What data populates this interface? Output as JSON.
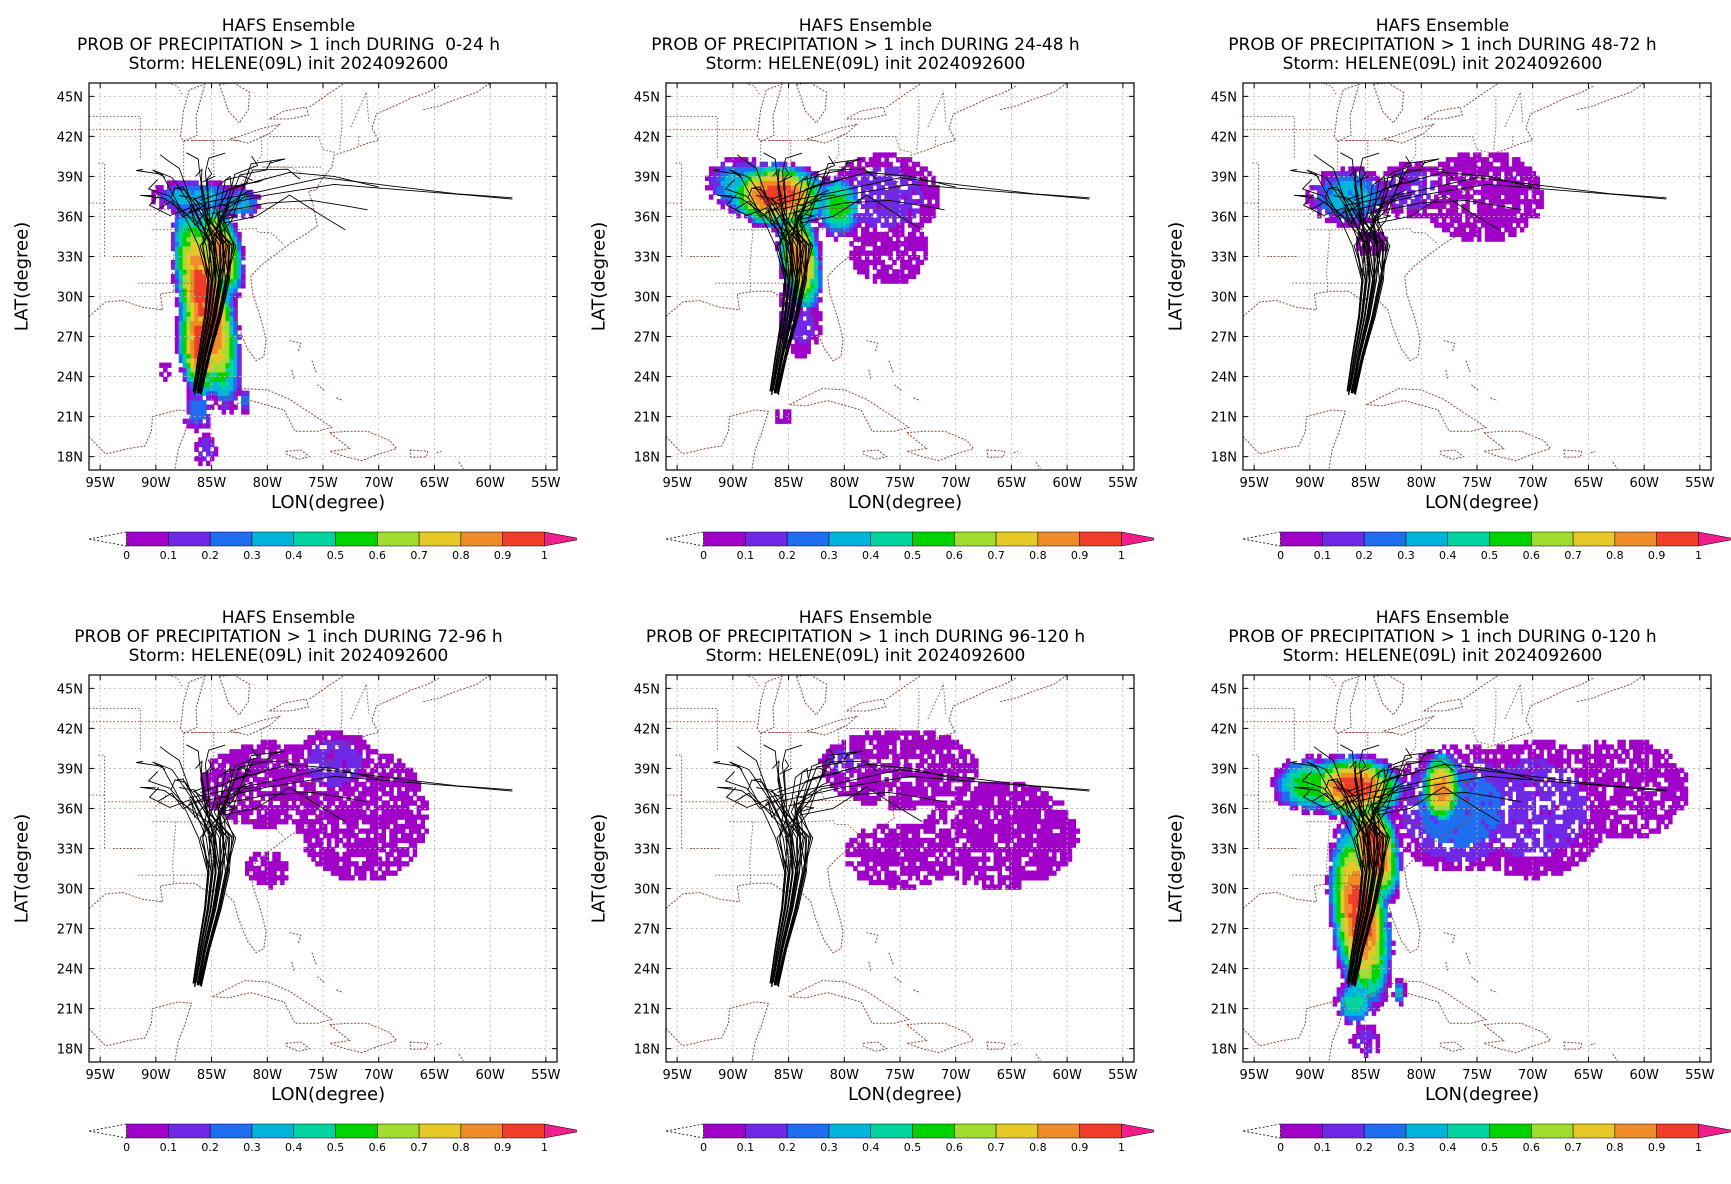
{
  "figure": {
    "panels": [
      {
        "title_1": "HAFS Ensemble",
        "title_2": "PROB OF PRECIPITATION > 1 inch DURING  0-24 h",
        "title_3": "Storm: HELENE(09L) init 2024092600",
        "xlabel": "LON(degree)",
        "ylabel": "LAT(degree)",
        "field_intensity": "high-south"
      },
      {
        "title_1": "HAFS Ensemble",
        "title_2": "PROB OF PRECIPITATION > 1 inch DURING 24-48 h",
        "title_3": "Storm: HELENE(09L) init 2024092600",
        "xlabel": "LON(degree)",
        "ylabel": "LAT(degree)",
        "field_intensity": "high-north"
      },
      {
        "title_1": "HAFS Ensemble",
        "title_2": "PROB OF PRECIPITATION > 1 inch DURING 48-72 h",
        "title_3": "Storm: HELENE(09L) init 2024092600",
        "xlabel": "LON(degree)",
        "ylabel": "LAT(degree)",
        "field_intensity": "low-north"
      },
      {
        "title_1": "HAFS Ensemble",
        "title_2": "PROB OF PRECIPITATION > 1 inch DURING 72-96 h",
        "title_3": "Storm: HELENE(09L) init 2024092600",
        "xlabel": "LON(degree)",
        "ylabel": "LAT(degree)",
        "field_intensity": "low-east"
      },
      {
        "title_1": "HAFS Ensemble",
        "title_2": "PROB OF PRECIPITATION > 1 inch DURING 96-120 h",
        "title_3": "Storm: HELENE(09L) init 2024092600",
        "xlabel": "LON(degree)",
        "ylabel": "LAT(degree)",
        "field_intensity": "lowest-east"
      },
      {
        "title_1": "HAFS Ensemble",
        "title_2": "PROB OF PRECIPITATION > 1 inch DURING 0-120 h",
        "title_3": "Storm: HELENE(09L) init 2024092600",
        "xlabel": "LON(degree)",
        "ylabel": "LAT(degree)",
        "field_intensity": "total"
      }
    ],
    "map": {
      "lon_range": [
        -96,
        -54
      ],
      "lat_range": [
        17,
        46
      ],
      "lon_ticks": [
        -95,
        -90,
        -85,
        -80,
        -75,
        -70,
        -65,
        -60,
        -55
      ],
      "lon_tick_labels": [
        "95W",
        "90W",
        "85W",
        "80W",
        "75W",
        "70W",
        "65W",
        "60W",
        "55W"
      ],
      "lat_ticks": [
        18,
        21,
        24,
        27,
        30,
        33,
        36,
        39,
        42,
        45
      ],
      "lat_tick_labels": [
        "18N",
        "21N",
        "24N",
        "27N",
        "30N",
        "33N",
        "36N",
        "39N",
        "42N",
        "45N"
      ],
      "coastline_color": "#8b4a3a",
      "track_color": "#000000"
    },
    "colorbar": {
      "labels": [
        "0",
        "0.1",
        "0.2",
        "0.3",
        "0.4",
        "0.5",
        "0.6",
        "0.7",
        "0.8",
        "0.9",
        "1"
      ],
      "colors": [
        "#a000c8",
        "#6e28e6",
        "#1e6ef0",
        "#00b4dc",
        "#00d2a0",
        "#00d200",
        "#a0dc32",
        "#e6c828",
        "#f08c28",
        "#f03c28"
      ],
      "under_color": "#ffffff",
      "over_color": "#f01e8c"
    }
  }
}
